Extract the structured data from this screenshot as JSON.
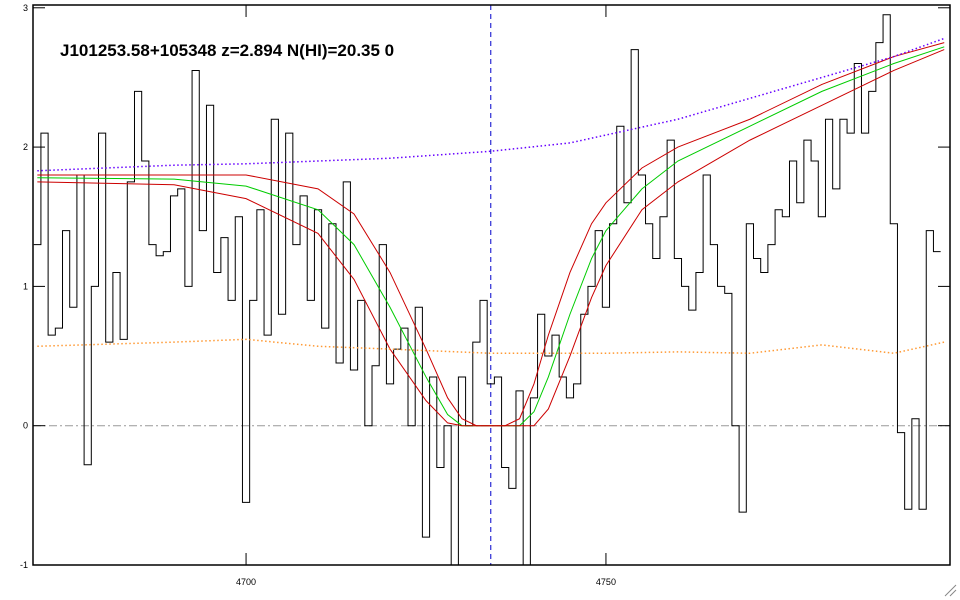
{
  "chart_data": {
    "type": "line",
    "title": "J101253.58+105348 z=2.894 N(HI)=20.35 0",
    "xlim": [
      4670.4,
      4797.8
    ],
    "ylim": [
      -1,
      3.02
    ],
    "xticks": [
      4700,
      4750
    ],
    "yticks": [
      -1,
      0,
      1,
      2,
      3
    ],
    "zero_line": 0,
    "vline": 4734,
    "series": [
      {
        "color": "#000000",
        "style": "steps",
        "x": [
          4671,
          4672,
          4673,
          4674,
          4675,
          4676,
          4677,
          4678,
          4679,
          4680,
          4681,
          4682,
          4683,
          4684,
          4685,
          4686,
          4687,
          4688,
          4689,
          4690,
          4691,
          4692,
          4693,
          4694,
          4695,
          4696,
          4697,
          4698,
          4699,
          4700,
          4701,
          4702,
          4703,
          4704,
          4705,
          4706,
          4707,
          4708,
          4709,
          4710,
          4711,
          4712,
          4713,
          4714,
          4715,
          4716,
          4717,
          4718,
          4719,
          4720,
          4721,
          4722,
          4723,
          4724,
          4725,
          4726,
          4727,
          4728,
          4729,
          4730,
          4731,
          4732,
          4733,
          4734,
          4735,
          4736,
          4737,
          4738,
          4739,
          4740,
          4741,
          4742,
          4743,
          4744,
          4745,
          4746,
          4747,
          4748,
          4749,
          4750,
          4751,
          4752,
          4753,
          4754,
          4755,
          4756,
          4757,
          4758,
          4759,
          4760,
          4761,
          4762,
          4763,
          4764,
          4765,
          4766,
          4767,
          4768,
          4769,
          4770,
          4771,
          4772,
          4773,
          4774,
          4775,
          4776,
          4777,
          4778,
          4779,
          4780,
          4781,
          4782,
          4783,
          4784,
          4785,
          4786,
          4787,
          4788,
          4789,
          4790,
          4791,
          4792,
          4793,
          4794,
          4795,
          4796
        ],
        "values": [
          1.3,
          2.1,
          0.65,
          0.7,
          1.4,
          0.85,
          1.8,
          -0.28,
          1.0,
          2.1,
          0.6,
          1.1,
          0.62,
          1.75,
          2.4,
          1.9,
          1.3,
          1.22,
          1.25,
          1.65,
          1.7,
          1.0,
          2.55,
          1.4,
          2.3,
          1.1,
          1.35,
          0.9,
          1.5,
          -0.55,
          0.9,
          1.55,
          0.65,
          2.2,
          0.8,
          2.1,
          1.3,
          1.65,
          0.9,
          1.55,
          0.7,
          1.45,
          0.45,
          1.75,
          0.4,
          0.9,
          0.0,
          0.43,
          1.3,
          0.3,
          0.55,
          0.7,
          0.0,
          0.85,
          -0.8,
          0.35,
          -0.3,
          0.0,
          -1.0,
          0.35,
          0.0,
          0.6,
          0.9,
          0.3,
          0.35,
          -0.3,
          -0.45,
          0.25,
          -1.0,
          0.2,
          0.8,
          0.5,
          0.65,
          0.35,
          0.2,
          0.3,
          0.8,
          1.0,
          1.4,
          0.85,
          1.45,
          2.15,
          1.6,
          2.7,
          1.8,
          1.45,
          1.2,
          1.5,
          2.05,
          1.2,
          1.0,
          0.83,
          1.1,
          1.8,
          1.3,
          1.0,
          0.95,
          0.0,
          -0.62,
          1.45,
          1.2,
          1.1,
          1.3,
          1.55,
          1.5,
          1.9,
          1.6,
          2.05,
          1.9,
          1.5,
          2.2,
          1.7,
          2.2,
          2.1,
          2.6,
          2.1,
          2.4,
          2.75,
          2.95,
          1.45,
          -0.05,
          -0.6,
          0.05,
          -0.6,
          1.4,
          1.25
        ]
      },
      {
        "color": "#00cc00",
        "style": "solid",
        "x": [
          4671,
          4690,
          4700,
          4710,
          4715,
          4720,
          4725,
          4728,
          4730,
          4738,
          4740,
          4742,
          4745,
          4748,
          4750,
          4755,
          4760,
          4770,
          4780,
          4790,
          4797
        ],
        "values": [
          1.78,
          1.77,
          1.72,
          1.55,
          1.3,
          0.85,
          0.35,
          0.08,
          0,
          0,
          0.1,
          0.35,
          0.8,
          1.2,
          1.4,
          1.7,
          1.9,
          2.15,
          2.4,
          2.6,
          2.72
        ]
      },
      {
        "color": "#cc0000",
        "style": "solid",
        "x": [
          4671,
          4700,
          4710,
          4715,
          4720,
          4725,
          4728,
          4730,
          4732,
          4736,
          4738,
          4740,
          4742,
          4745,
          4748,
          4750,
          4755,
          4760,
          4770,
          4780,
          4790,
          4797
        ],
        "values": [
          1.8,
          1.8,
          1.7,
          1.52,
          1.1,
          0.55,
          0.2,
          0.05,
          0,
          0,
          0.05,
          0.3,
          0.65,
          1.1,
          1.45,
          1.6,
          1.85,
          2.0,
          2.2,
          2.45,
          2.65,
          2.75
        ]
      },
      {
        "color": "#cc0000",
        "style": "solid",
        "x": [
          4671,
          4690,
          4700,
          4710,
          4715,
          4720,
          4725,
          4728,
          4730,
          4740,
          4742,
          4745,
          4748,
          4750,
          4755,
          4760,
          4770,
          4780,
          4790,
          4797
        ],
        "values": [
          1.75,
          1.73,
          1.63,
          1.38,
          1.05,
          0.55,
          0.18,
          0.02,
          0,
          0,
          0.12,
          0.5,
          0.92,
          1.15,
          1.55,
          1.75,
          2.05,
          2.3,
          2.55,
          2.7
        ]
      },
      {
        "color": "#6600ff",
        "style": "dotted",
        "x": [
          4671,
          4690,
          4700,
          4720,
          4734,
          4745,
          4760,
          4770,
          4780,
          4790,
          4797
        ],
        "values": [
          1.83,
          1.87,
          1.88,
          1.92,
          1.97,
          2.03,
          2.2,
          2.35,
          2.5,
          2.65,
          2.78
        ]
      },
      {
        "color": "#ff9933",
        "style": "dotted",
        "x": [
          4671,
          4690,
          4700,
          4710,
          4720,
          4734,
          4750,
          4760,
          4770,
          4780,
          4790,
          4797
        ],
        "values": [
          0.57,
          0.6,
          0.62,
          0.57,
          0.55,
          0.52,
          0.52,
          0.53,
          0.52,
          0.58,
          0.52,
          0.6
        ]
      }
    ]
  }
}
